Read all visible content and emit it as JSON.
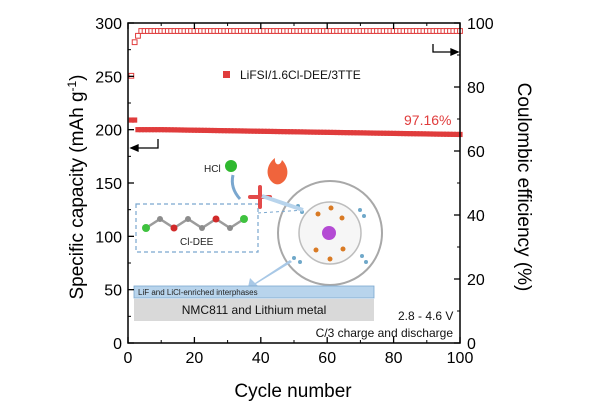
{
  "chart_data": {
    "type": "scatter",
    "xlabel": "Cycle number",
    "ylabel_left": "Specific capacity (mAh g⁻¹)",
    "ylabel_right": "Coulombic efficiency (%)",
    "xlim": [
      0,
      100
    ],
    "ylim_left": [
      0,
      300
    ],
    "ylim_right": [
      0,
      100
    ],
    "x_ticks": [
      "0",
      "20",
      "40",
      "60",
      "80",
      "100"
    ],
    "y_left_ticks": [
      "0",
      "50",
      "100",
      "150",
      "200",
      "250",
      "300"
    ],
    "y_right_ticks": [
      "0",
      "20",
      "40",
      "60",
      "80",
      "100"
    ],
    "legend": "LiFSI/1.6Cl-DEE/3TTE",
    "legend_position": "top",
    "colors": {
      "series": "#e03c3c",
      "axes": "#000000",
      "panel_blue": "#b8d4ec",
      "panel_grey": "#d9d9d9"
    },
    "series": [
      {
        "name": "LiFSI/1.6Cl-DEE/3TTE",
        "axis": "left",
        "marker": "filled-square",
        "description_points": [
          [
            1,
            209
          ],
          [
            2,
            209
          ],
          [
            3,
            200
          ],
          [
            10,
            200
          ],
          [
            20,
            199.5
          ],
          [
            30,
            199
          ],
          [
            40,
            198.5
          ],
          [
            50,
            198
          ],
          [
            60,
            197.5
          ],
          [
            70,
            197
          ],
          [
            80,
            196.5
          ],
          [
            90,
            196
          ],
          [
            100,
            195.5
          ]
        ],
        "start": 209,
        "plateau_start": 200,
        "end": 195.5
      },
      {
        "name": "Coulombic efficiency",
        "axis": "right",
        "marker": "open-square",
        "points": [
          [
            1,
            83.5
          ],
          [
            2,
            94
          ],
          [
            3,
            96
          ],
          [
            4,
            97.5
          ],
          [
            100,
            97.5
          ]
        ],
        "plateau": 97.5
      }
    ],
    "annotations": {
      "retention": "97.16%",
      "hcl": "HCl",
      "molecule": "Cl-DEE",
      "interphase": "LiF and LiCl-enriched interphases",
      "electrodes": "NMC811 and Lithium metal",
      "voltage": "2.8 - 4.6 V",
      "rate": "C/3 charge and discharge"
    }
  }
}
